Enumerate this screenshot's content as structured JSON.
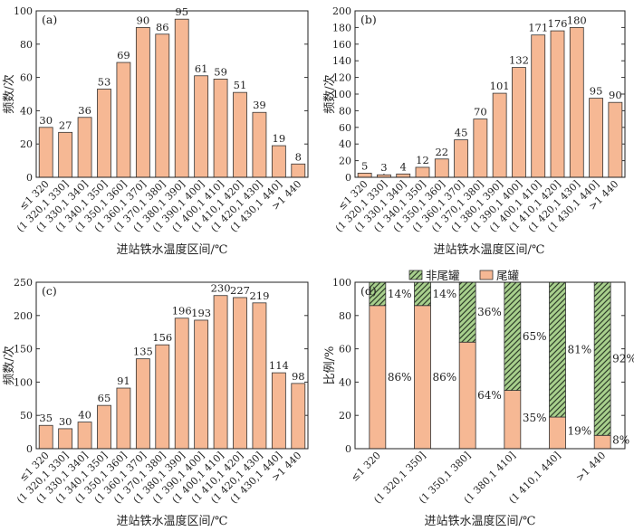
{
  "colors": {
    "bar_fill": "#f6b894",
    "bar_stroke": "#333333",
    "hatch_fill": "#a8d08d",
    "hatch_line": "#2f3f2a"
  },
  "chart_data": [
    {
      "type": "bar",
      "panel": "(a)",
      "categories": [
        "≤1 320",
        "(1 320,1 330]",
        "(1 330,1 340]",
        "(1 340,1 350]",
        "(1 350,1 360]",
        "(1 360,1 370]",
        "(1 370,1 380]",
        "(1 380,1 390]",
        "(1 390,1 400]",
        "(1 400,1 410]",
        "(1 410,1 420]",
        "(1 420,1 430]",
        "(1 430,1 440]",
        ">1 440"
      ],
      "values": [
        30,
        27,
        36,
        53,
        69,
        90,
        86,
        95,
        61,
        59,
        51,
        39,
        19,
        8
      ],
      "ylim": [
        0,
        100
      ],
      "yticks": [
        0,
        20,
        40,
        60,
        80,
        100
      ],
      "xlabel": "进站铁水温度区间/℃",
      "ylabel": "频数/次",
      "grid": false
    },
    {
      "type": "bar",
      "panel": "(b)",
      "categories": [
        "≤1 320",
        "(1 320,1 330]",
        "(1 330,1 340]",
        "(1 340,1 350]",
        "(1 350,1 360]",
        "(1 360,1 370]",
        "(1 370,1 380]",
        "(1 380,1 390]",
        "(1 390,1 400]",
        "(1 400,1 410]",
        "(1 410,1 420]",
        "(1 420,1 430]",
        "(1 430,1 440]",
        ">1 440"
      ],
      "values": [
        5,
        3,
        4,
        12,
        22,
        45,
        70,
        101,
        132,
        171,
        176,
        180,
        95,
        90
      ],
      "ylim": [
        0,
        200
      ],
      "yticks": [
        0,
        20,
        40,
        60,
        80,
        100,
        120,
        140,
        160,
        180,
        200
      ],
      "xlabel": "进站铁水温度区间/℃",
      "ylabel": "频数/次",
      "grid": false
    },
    {
      "type": "bar",
      "panel": "(c)",
      "categories": [
        "≤1 320",
        "(1 320,1 330]",
        "(1 330,1 340]",
        "(1 340,1 350]",
        "(1 350,1 360]",
        "(1 360,1 370]",
        "(1 370,1 380]",
        "(1 380,1 390]",
        "(1 390,1 400]",
        "(1 400,1 410]",
        "(1 410,1 420]",
        "(1 420,1 430]",
        "(1 430,1 440]",
        ">1 440"
      ],
      "values": [
        35,
        30,
        40,
        65,
        91,
        135,
        156,
        196,
        193,
        230,
        227,
        219,
        114,
        98
      ],
      "ylim": [
        0,
        250
      ],
      "yticks": [
        0,
        50,
        100,
        150,
        200,
        250
      ],
      "xlabel": "进站铁水温度区间/℃",
      "ylabel": "频数/次",
      "grid": false
    },
    {
      "type": "bar",
      "stacked": true,
      "panel": "(d)",
      "categories": [
        "≤1 320",
        "(1 320,1 350]",
        "(1 350,1 380]",
        "(1 380,1 410]",
        "(1 410,1 440]",
        ">1 440"
      ],
      "series": [
        {
          "name": "尾罐",
          "values": [
            86,
            86,
            64,
            35,
            19,
            8
          ],
          "labels": [
            "86%",
            "86%",
            "64%",
            "35%",
            "19%",
            "8%"
          ]
        },
        {
          "name": "非尾罐",
          "values": [
            14,
            14,
            36,
            65,
            81,
            92
          ],
          "labels": [
            "14%",
            "14%",
            "36%",
            "65%",
            "81%",
            "92%"
          ]
        }
      ],
      "legend_labels": [
        "非尾罐",
        "尾罐"
      ],
      "legend": "top",
      "ylim": [
        0,
        100
      ],
      "yticks": [
        0,
        20,
        40,
        60,
        80,
        100
      ],
      "xlabel": "进站铁水温度区间/℃",
      "ylabel": "比例/%",
      "grid": false
    }
  ]
}
